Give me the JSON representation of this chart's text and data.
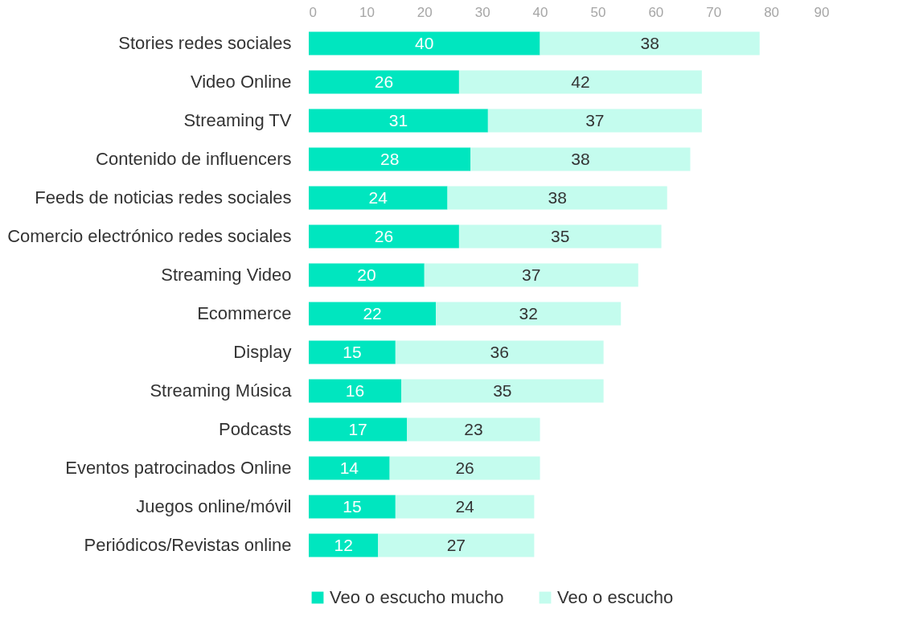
{
  "chart_data": {
    "type": "bar",
    "orientation": "horizontal",
    "stacked": true,
    "data_labels": true,
    "grid": false,
    "legend": "bottom",
    "categories": [
      "Stories redes sociales",
      "Video Online",
      "Streaming TV",
      "Contenido de influencers",
      "Feeds de noticias redes sociales",
      "Comercio electrónico redes sociales",
      "Streaming Video",
      "Ecommerce",
      "Display",
      "Streaming Música",
      "Podcasts",
      "Eventos patrocinados Online",
      "Juegos online/móvil",
      "Periódicos/Revistas online"
    ],
    "series": [
      {
        "name": "Veo o escucho mucho",
        "color": "#00e6bf",
        "values": [
          40,
          26,
          31,
          28,
          24,
          26,
          20,
          22,
          15,
          16,
          17,
          14,
          15,
          12
        ]
      },
      {
        "name": "Veo o escucho",
        "color": "#c4fcee",
        "values": [
          38,
          42,
          37,
          38,
          38,
          35,
          37,
          32,
          36,
          35,
          23,
          26,
          24,
          27
        ]
      }
    ],
    "xlim": [
      0,
      90
    ],
    "xticks": [
      0,
      10,
      20,
      30,
      40,
      50,
      60,
      70,
      80,
      90
    ]
  }
}
